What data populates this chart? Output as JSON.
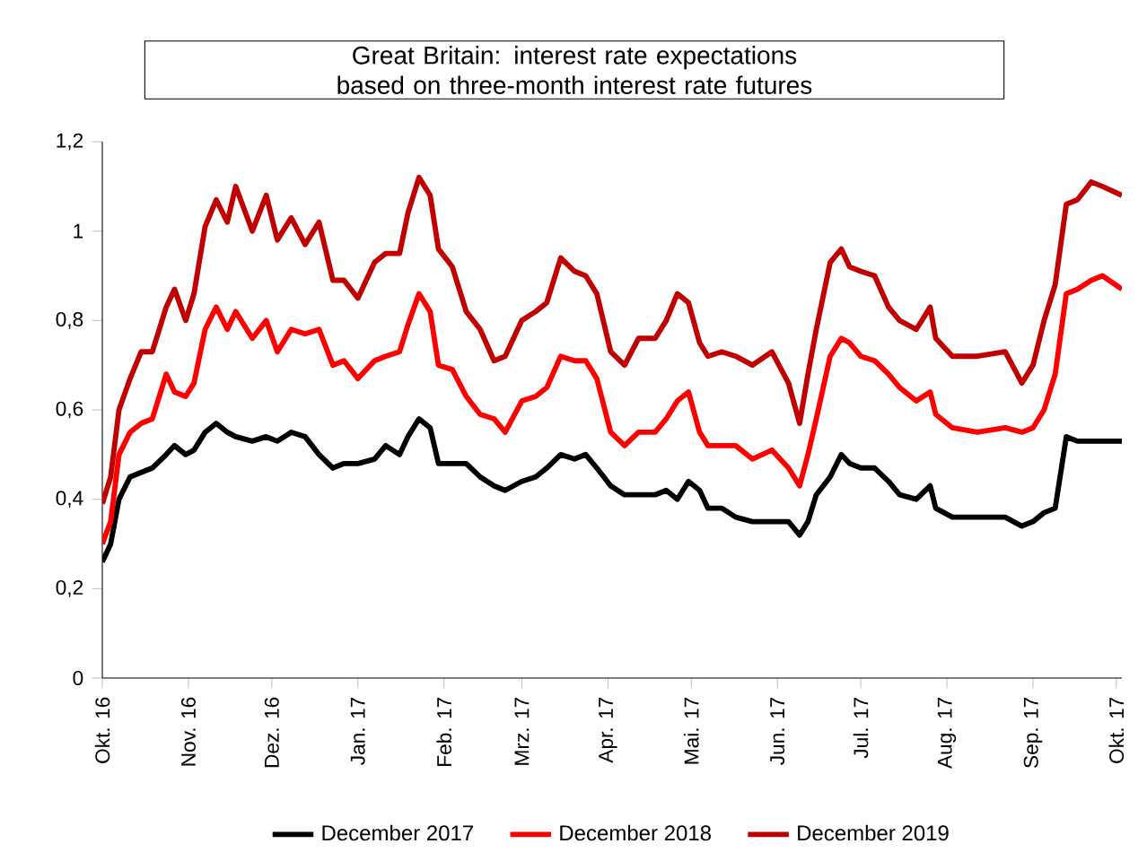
{
  "chart_data": {
    "type": "line",
    "title": "Great Britain: interest rate expectations based on three-month interest rate futures",
    "x": [
      "2016-10-01",
      "2016-10-04",
      "2016-10-07",
      "2016-10-11",
      "2016-10-15",
      "2016-10-19",
      "2016-10-24",
      "2016-10-27",
      "2016-10-31",
      "2016-11-03",
      "2016-11-07",
      "2016-11-11",
      "2016-11-15",
      "2016-11-18",
      "2016-11-24",
      "2016-11-29",
      "2016-12-03",
      "2016-12-08",
      "2016-12-13",
      "2016-12-18",
      "2016-12-23",
      "2016-12-27",
      "2017-01-01",
      "2017-01-07",
      "2017-01-11",
      "2017-01-16",
      "2017-01-19",
      "2017-01-23",
      "2017-01-27",
      "2017-01-30",
      "2017-02-04",
      "2017-02-09",
      "2017-02-14",
      "2017-02-19",
      "2017-02-23",
      "2017-03-01",
      "2017-03-06",
      "2017-03-10",
      "2017-03-15",
      "2017-03-20",
      "2017-03-24",
      "2017-03-28",
      "2017-04-02",
      "2017-04-07",
      "2017-04-12",
      "2017-04-18",
      "2017-04-22",
      "2017-04-26",
      "2017-04-30",
      "2017-05-04",
      "2017-05-07",
      "2017-05-12",
      "2017-05-17",
      "2017-05-23",
      "2017-05-30",
      "2017-06-05",
      "2017-06-09",
      "2017-06-12",
      "2017-06-15",
      "2017-06-20",
      "2017-06-24",
      "2017-06-27",
      "2017-07-01",
      "2017-07-06",
      "2017-07-11",
      "2017-07-15",
      "2017-07-21",
      "2017-07-26",
      "2017-07-28",
      "2017-08-03",
      "2017-08-12",
      "2017-08-22",
      "2017-08-28",
      "2017-09-01",
      "2017-09-05",
      "2017-09-09",
      "2017-09-13",
      "2017-09-17",
      "2017-09-22",
      "2017-09-26",
      "2017-10-03"
    ],
    "series": [
      {
        "name": "December 2017",
        "color": "#000000",
        "values": [
          0.26,
          0.3,
          0.4,
          0.45,
          0.46,
          0.47,
          0.5,
          0.52,
          0.5,
          0.51,
          0.55,
          0.57,
          0.55,
          0.54,
          0.53,
          0.54,
          0.53,
          0.55,
          0.54,
          0.5,
          0.47,
          0.48,
          0.48,
          0.49,
          0.52,
          0.5,
          0.54,
          0.58,
          0.56,
          0.48,
          0.48,
          0.48,
          0.45,
          0.43,
          0.42,
          0.44,
          0.45,
          0.47,
          0.5,
          0.49,
          0.5,
          0.47,
          0.43,
          0.41,
          0.41,
          0.41,
          0.42,
          0.4,
          0.44,
          0.42,
          0.38,
          0.38,
          0.36,
          0.35,
          0.35,
          0.35,
          0.32,
          0.35,
          0.41,
          0.45,
          0.5,
          0.48,
          0.47,
          0.47,
          0.44,
          0.41,
          0.4,
          0.43,
          0.38,
          0.36,
          0.36,
          0.36,
          0.34,
          0.35,
          0.37,
          0.38,
          0.54,
          0.53,
          0.53,
          0.53,
          0.53
        ]
      },
      {
        "name": "December 2018",
        "color": "#ff0000",
        "values": [
          0.3,
          0.35,
          0.5,
          0.55,
          0.57,
          0.58,
          0.68,
          0.64,
          0.63,
          0.66,
          0.78,
          0.83,
          0.78,
          0.82,
          0.76,
          0.8,
          0.73,
          0.78,
          0.77,
          0.78,
          0.7,
          0.71,
          0.67,
          0.71,
          0.72,
          0.73,
          0.79,
          0.86,
          0.82,
          0.7,
          0.69,
          0.63,
          0.59,
          0.58,
          0.55,
          0.62,
          0.63,
          0.65,
          0.72,
          0.71,
          0.71,
          0.67,
          0.55,
          0.52,
          0.55,
          0.55,
          0.58,
          0.62,
          0.64,
          0.55,
          0.52,
          0.52,
          0.52,
          0.49,
          0.51,
          0.47,
          0.43,
          0.5,
          0.58,
          0.72,
          0.76,
          0.75,
          0.72,
          0.71,
          0.68,
          0.65,
          0.62,
          0.64,
          0.59,
          0.56,
          0.55,
          0.56,
          0.55,
          0.56,
          0.6,
          0.68,
          0.86,
          0.87,
          0.89,
          0.9,
          0.87
        ]
      },
      {
        "name": "December 2019",
        "color": "#c00000",
        "values": [
          0.39,
          0.45,
          0.6,
          0.67,
          0.73,
          0.73,
          0.83,
          0.87,
          0.8,
          0.86,
          1.01,
          1.07,
          1.02,
          1.1,
          1.0,
          1.08,
          0.98,
          1.03,
          0.97,
          1.02,
          0.89,
          0.89,
          0.85,
          0.93,
          0.95,
          0.95,
          1.04,
          1.12,
          1.08,
          0.96,
          0.92,
          0.82,
          0.78,
          0.71,
          0.72,
          0.8,
          0.82,
          0.84,
          0.94,
          0.91,
          0.9,
          0.86,
          0.73,
          0.7,
          0.76,
          0.76,
          0.8,
          0.86,
          0.84,
          0.75,
          0.72,
          0.73,
          0.72,
          0.7,
          0.73,
          0.66,
          0.57,
          0.68,
          0.78,
          0.93,
          0.96,
          0.92,
          0.91,
          0.9,
          0.83,
          0.8,
          0.78,
          0.83,
          0.76,
          0.72,
          0.72,
          0.73,
          0.66,
          0.7,
          0.8,
          0.88,
          1.06,
          1.07,
          1.11,
          1.1,
          1.08
        ]
      }
    ],
    "xlim": [
      "2016-10-01",
      "2017-10-03"
    ],
    "xticks": [
      {
        "value": "2016-10-01",
        "label": "Okt. 16"
      },
      {
        "value": "2016-11-01",
        "label": "Nov. 16"
      },
      {
        "value": "2016-12-01",
        "label": "Dez. 16"
      },
      {
        "value": "2017-01-01",
        "label": "Jan. 17"
      },
      {
        "value": "2017-02-01",
        "label": "Feb. 17"
      },
      {
        "value": "2017-03-01",
        "label": "Mrz. 17"
      },
      {
        "value": "2017-04-01",
        "label": "Apr. 17"
      },
      {
        "value": "2017-05-01",
        "label": "Mai. 17"
      },
      {
        "value": "2017-06-01",
        "label": "Jun. 17"
      },
      {
        "value": "2017-07-01",
        "label": "Jul. 17"
      },
      {
        "value": "2017-08-01",
        "label": "Aug. 17"
      },
      {
        "value": "2017-09-01",
        "label": "Sep. 17"
      },
      {
        "value": "2017-10-01",
        "label": "Okt. 17"
      }
    ],
    "ylim": [
      0,
      1.2
    ],
    "yticks": [
      0,
      {
        "value": 0.2,
        "label": "0,2"
      },
      {
        "value": 0.4,
        "label": "0,4"
      },
      {
        "value": 0.6,
        "label": "0,6"
      },
      {
        "value": 0.8,
        "label": "0,8"
      },
      1,
      {
        "value": 1.2,
        "label": "1,2"
      }
    ],
    "legend": "bottom",
    "grid": false,
    "marker": "none",
    "line_style": "solid"
  }
}
